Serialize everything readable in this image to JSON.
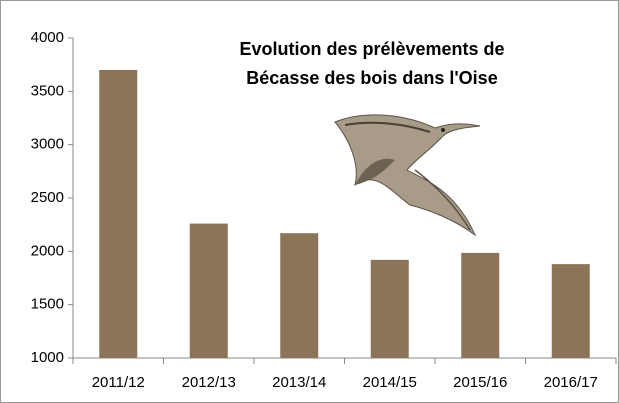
{
  "chart_data": {
    "type": "bar",
    "title": [
      "Evolution des prélèvements de",
      "Bécasse des bois dans l'Oise"
    ],
    "categories": [
      "2011/12",
      "2012/13",
      "2013/14",
      "2014/15",
      "2015/16",
      "2016/17"
    ],
    "values": [
      3700,
      2260,
      2170,
      1920,
      1985,
      1880
    ],
    "color": "#8b7458",
    "ylim": [
      1000,
      4000
    ],
    "yticks": [
      1000,
      1500,
      2000,
      2500,
      3000,
      3500,
      4000
    ],
    "grid": false
  }
}
